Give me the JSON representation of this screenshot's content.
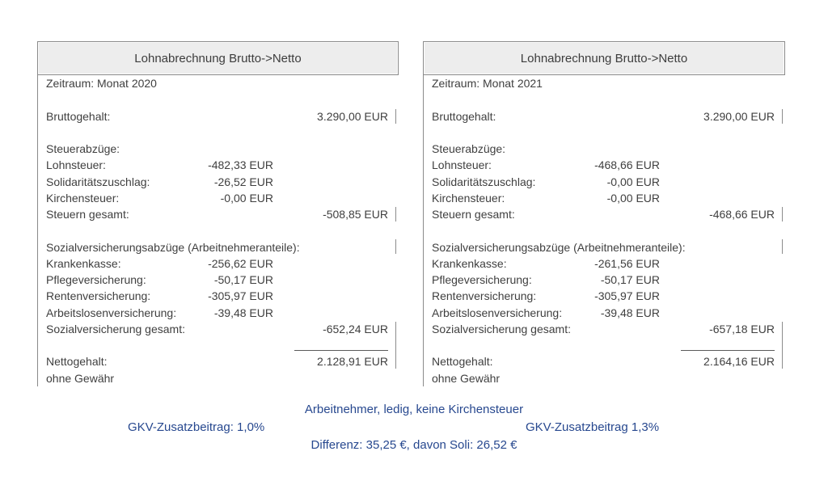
{
  "panels": [
    {
      "title": "Lohnabrechnung Brutto->Netto",
      "period": "Zeitraum: Monat 2020",
      "gross_label": "Bruttogehalt:",
      "gross_value": "3.290,00 EUR",
      "tax_section_label": "Steuerabzüge:",
      "tax_rows": [
        {
          "label": "Lohnsteuer:",
          "value": "-482,33 EUR"
        },
        {
          "label": "Solidaritätszuschlag:",
          "value": "-26,52 EUR"
        },
        {
          "label": "Kirchensteuer:",
          "value": "-0,00 EUR"
        }
      ],
      "tax_total_label": "Steuern gesamt:",
      "tax_total_value": "-508,85 EUR",
      "social_section_label": "Sozialversicherungsabzüge (Arbeitnehmeranteile):",
      "social_rows": [
        {
          "label": "Krankenkasse:",
          "value": "-256,62 EUR"
        },
        {
          "label": "Pflegeversicherung:",
          "value": "-50,17 EUR"
        },
        {
          "label": "Rentenversicherung:",
          "value": "-305,97 EUR"
        },
        {
          "label": "Arbeitslosenversicherung:",
          "value": "-39,48 EUR"
        }
      ],
      "social_total_label": "Sozialversicherung gesamt:",
      "social_total_value": "-652,24 EUR",
      "net_label": "Nettogehalt:",
      "net_value": "2.128,91 EUR",
      "disclaimer": "ohne Gewähr"
    },
    {
      "title": "Lohnabrechnung Brutto->Netto",
      "period": "Zeitraum: Monat 2021",
      "gross_label": "Bruttogehalt:",
      "gross_value": "3.290,00 EUR",
      "tax_section_label": "Steuerabzüge:",
      "tax_rows": [
        {
          "label": "Lohnsteuer:",
          "value": "-468,66 EUR"
        },
        {
          "label": "Solidaritätszuschlag:",
          "value": "-0,00 EUR"
        },
        {
          "label": "Kirchensteuer:",
          "value": "-0,00 EUR"
        }
      ],
      "tax_total_label": "Steuern gesamt:",
      "tax_total_value": "-468,66 EUR",
      "social_section_label": "Sozialversicherungsabzüge (Arbeitnehmeranteile):",
      "social_rows": [
        {
          "label": "Krankenkasse:",
          "value": "-261,56 EUR"
        },
        {
          "label": "Pflegeversicherung:",
          "value": "-50,17 EUR"
        },
        {
          "label": "Rentenversicherung:",
          "value": "-305,97 EUR"
        },
        {
          "label": "Arbeitslosenversicherung:",
          "value": "-39,48 EUR"
        }
      ],
      "social_total_label": "Sozialversicherung gesamt:",
      "social_total_value": "-657,18 EUR",
      "net_label": "Nettogehalt:",
      "net_value": "2.164,16 EUR",
      "disclaimer": "ohne Gewähr"
    }
  ],
  "footer": {
    "line1": "Arbeitnehmer, ledig, keine Kirchensteuer",
    "gkv_left": "GKV-Zusatzbeitrag: 1,0%",
    "gkv_right": "GKV-Zusatzbeitrag 1,3%",
    "line3": "Differenz: 35,25 €, davon Soli: 26,52 €"
  },
  "colors": {
    "accent_blue": "#27488f",
    "body_text": "#3f3f3f",
    "header_bg": "#ededed",
    "border_gray": "#8a8a8a"
  }
}
